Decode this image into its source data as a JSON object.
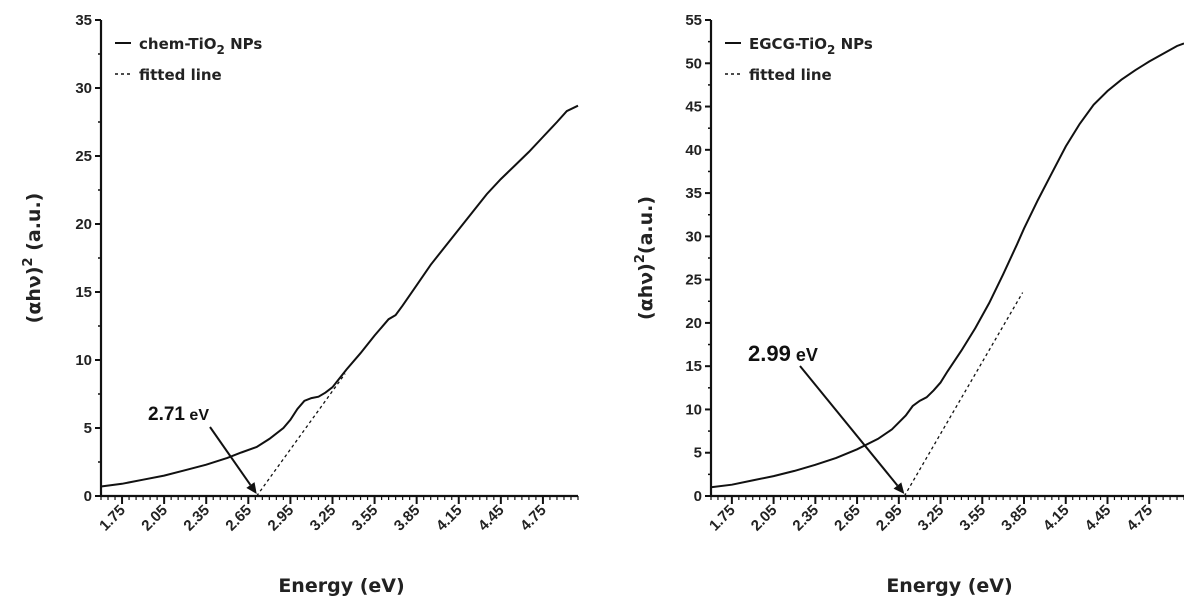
{
  "chart_data": [
    {
      "type": "line",
      "xlabel": "Energy (eV)",
      "ylabel": "(αhν)",
      "ylabel_sup": "2",
      "ylabel_suffix": " (a.u.)",
      "xlim": [
        1.6,
        5.0
      ],
      "ylim": [
        0,
        35
      ],
      "x_ticks": [
        "1.75",
        "2.05",
        "2.35",
        "2.65",
        "2.95",
        "3.25",
        "3.55",
        "3.85",
        "4.15",
        "4.45",
        "4.75"
      ],
      "y_ticks": [
        0,
        5,
        10,
        15,
        20,
        25,
        30,
        35
      ],
      "legend": [
        {
          "name": "chem-TiO",
          "sub": "2",
          "suffix": " NPs",
          "style": "solid"
        },
        {
          "name": "fitted line",
          "style": "dashed"
        }
      ],
      "legend_position": "top-left",
      "series": [
        {
          "name": "chem-TiO2 NPs",
          "style": "solid",
          "x": [
            1.6,
            1.75,
            1.9,
            2.05,
            2.2,
            2.35,
            2.5,
            2.6,
            2.71,
            2.8,
            2.9,
            2.95,
            3.0,
            3.05,
            3.1,
            3.15,
            3.2,
            3.25,
            3.35,
            3.45,
            3.55,
            3.65,
            3.7,
            3.75,
            3.85,
            3.95,
            4.05,
            4.15,
            4.25,
            4.35,
            4.45,
            4.55,
            4.65,
            4.75,
            4.85,
            4.92,
            5.0
          ],
          "y": [
            0.7,
            0.9,
            1.2,
            1.5,
            1.9,
            2.3,
            2.8,
            3.2,
            3.6,
            4.2,
            5.0,
            5.6,
            6.4,
            7.0,
            7.2,
            7.3,
            7.6,
            8.0,
            9.3,
            10.5,
            11.8,
            13.0,
            13.3,
            14.0,
            15.5,
            17.0,
            18.3,
            19.6,
            20.9,
            22.2,
            23.3,
            24.3,
            25.3,
            26.4,
            27.5,
            28.3,
            28.7
          ]
        },
        {
          "name": "fitted line",
          "style": "dashed",
          "x": [
            2.71,
            3.34
          ],
          "y": [
            0,
            9.0
          ]
        }
      ],
      "annotation": {
        "value": "2.71",
        "unit": " eV",
        "x": 2.71,
        "y": 0
      }
    },
    {
      "type": "line",
      "xlabel": "Energy (eV)",
      "ylabel": "(αhν)",
      "ylabel_sup": "2",
      "ylabel_suffix": "(a.u.)",
      "xlim": [
        1.6,
        5.0
      ],
      "ylim": [
        0,
        55
      ],
      "x_ticks": [
        "1.75",
        "2.05",
        "2.35",
        "2.65",
        "2.95",
        "3.25",
        "3.55",
        "3.85",
        "4.15",
        "4.45",
        "4.75"
      ],
      "y_ticks": [
        0,
        5,
        10,
        15,
        20,
        25,
        30,
        35,
        40,
        45,
        50,
        55
      ],
      "legend": [
        {
          "name": "EGCG-TiO",
          "sub": "2",
          "suffix": " NPs",
          "style": "solid"
        },
        {
          "name": "fitted line",
          "style": "dashed"
        }
      ],
      "legend_position": "top-left",
      "series": [
        {
          "name": "EGCG-TiO2 NPs",
          "style": "solid",
          "x": [
            1.6,
            1.75,
            1.9,
            2.05,
            2.2,
            2.35,
            2.5,
            2.65,
            2.8,
            2.9,
            3.0,
            3.05,
            3.1,
            3.15,
            3.2,
            3.25,
            3.3,
            3.4,
            3.5,
            3.6,
            3.7,
            3.8,
            3.85,
            3.95,
            4.05,
            4.15,
            4.25,
            4.35,
            4.45,
            4.55,
            4.65,
            4.75,
            4.85,
            4.95,
            5.0
          ],
          "y": [
            1.0,
            1.3,
            1.8,
            2.3,
            2.9,
            3.6,
            4.4,
            5.4,
            6.6,
            7.7,
            9.3,
            10.4,
            11.0,
            11.4,
            12.2,
            13.1,
            14.4,
            16.8,
            19.4,
            22.3,
            25.6,
            29.1,
            30.9,
            34.2,
            37.3,
            40.4,
            43.0,
            45.2,
            46.8,
            48.1,
            49.2,
            50.2,
            51.1,
            52.0,
            52.3
          ]
        },
        {
          "name": "fitted line",
          "style": "dashed",
          "x": [
            2.99,
            3.84
          ],
          "y": [
            0,
            23.5
          ]
        }
      ],
      "annotation": {
        "value": "2.99",
        "unit": " eV",
        "x": 2.99,
        "y": 0
      }
    }
  ]
}
